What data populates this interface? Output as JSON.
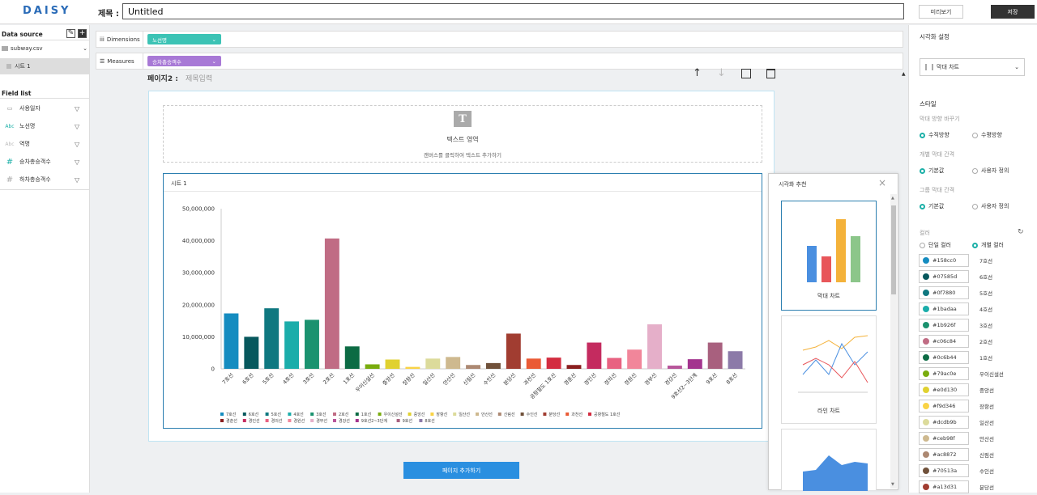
{
  "app": {
    "logo": "DAISY"
  },
  "header": {
    "title_label": "제목 :",
    "title_value": "Untitled",
    "preview_label": "미리보기",
    "save_label": "저장"
  },
  "left": {
    "datasource_label": "Data source",
    "file": "subway.csv",
    "sheet": "시트 1",
    "fieldlist_label": "Field list",
    "fields": [
      {
        "type": "date",
        "icon": "▭",
        "name": "사용일자"
      },
      {
        "type": "abc",
        "icon": "Abc",
        "name": "노선명"
      },
      {
        "type": "abc-dim",
        "icon": "Abc",
        "name": "역명"
      },
      {
        "type": "num",
        "icon": "#",
        "name": "승차총승객수"
      },
      {
        "type": "num-dim",
        "icon": "#",
        "name": "하차총승객수"
      }
    ]
  },
  "shelves": {
    "dimensions_label": "Dimensions",
    "dimension_pill": "노선명",
    "measures_label": "Measures",
    "measure_pill": "승차총승객수"
  },
  "page": {
    "label": "페이지2 :",
    "title_placeholder": "제목입력"
  },
  "text_area": {
    "icon": "T",
    "title": "텍스트 영역",
    "subtitle": "캔버스를 클릭하여 텍스트 추가하기"
  },
  "sheet_title": "시트 1",
  "add_page_label": "페이지 추가하기",
  "recommend": {
    "title": "시각화 추천",
    "cards": [
      "막대 차트",
      "라인 차트"
    ]
  },
  "right": {
    "title": "시각화 설정",
    "chart_type": "막대 차트",
    "style_label": "스타일",
    "bar_direction_label": "막대 방향 바꾸기",
    "vertical": "수직방향",
    "horizontal": "수평방향",
    "bar_gap_label": "개별 막대 간격",
    "group_gap_label": "그룹 막대 간격",
    "default": "기본값",
    "custom": "사용자 정의",
    "color_label": "컬러",
    "single_color": "단일 컬러",
    "each_color": "개별 컬러",
    "colors": [
      {
        "hex": "#158cc0",
        "label": "7호선"
      },
      {
        "hex": "#07585d",
        "label": "6호선"
      },
      {
        "hex": "#0f7880",
        "label": "5호선"
      },
      {
        "hex": "#1badaa",
        "label": "4호선"
      },
      {
        "hex": "#1b926f",
        "label": "3호선"
      },
      {
        "hex": "#c06c84",
        "label": "2호선"
      },
      {
        "hex": "#0c6b44",
        "label": "1호선"
      },
      {
        "hex": "#79ac0e",
        "label": "우이신설선"
      },
      {
        "hex": "#e0d130",
        "label": "중앙선"
      },
      {
        "hex": "#f9d346",
        "label": "장항선"
      },
      {
        "hex": "#dcdb9b",
        "label": "일산선"
      },
      {
        "hex": "#ceb98f",
        "label": "안산선"
      },
      {
        "hex": "#ac8872",
        "label": "신림선"
      },
      {
        "hex": "#70513a",
        "label": "수인선"
      },
      {
        "hex": "#a13d31",
        "label": "분당선"
      }
    ]
  },
  "chart_data": {
    "type": "bar",
    "ylim": [
      0,
      50000000
    ],
    "yticks": [
      "0",
      "10,000,000",
      "20,000,000",
      "30,000,000",
      "40,000,000",
      "50,000,000"
    ],
    "categories": [
      "7호선",
      "6호선",
      "5호선",
      "4호선",
      "3호선",
      "2호선",
      "1호선",
      "우이신설선",
      "중앙선",
      "장항선",
      "일산선",
      "안산선",
      "신림선",
      "수인선",
      "분당선",
      "과천선",
      "공항철도 1호선",
      "경춘선",
      "경인선",
      "경의선",
      "경원선",
      "경부선",
      "경강선",
      "9호선2~3단계",
      "9호선",
      "8호선"
    ],
    "values": [
      17300000,
      10000000,
      18900000,
      14800000,
      15300000,
      40700000,
      7000000,
      1400000,
      2900000,
      600000,
      3200000,
      3700000,
      1200000,
      1800000,
      11000000,
      3200000,
      3500000,
      1200000,
      8200000,
      3400000,
      6000000,
      13900000,
      1000000,
      3000000,
      8200000,
      5500000
    ],
    "colors": [
      "#158cc0",
      "#07585d",
      "#0f7880",
      "#1badaa",
      "#1b926f",
      "#c06c84",
      "#0c6b44",
      "#79ac0e",
      "#e0d130",
      "#f9d346",
      "#dcdb9b",
      "#ceb98f",
      "#ac8872",
      "#70513a",
      "#a13d31",
      "#ea5a35",
      "#d32c40",
      "#8a1e1e",
      "#c42b5f",
      "#e86281",
      "#f1869a",
      "#e5afc9",
      "#b7559a",
      "#a3348e",
      "#a8607e",
      "#8c7aa8"
    ]
  }
}
